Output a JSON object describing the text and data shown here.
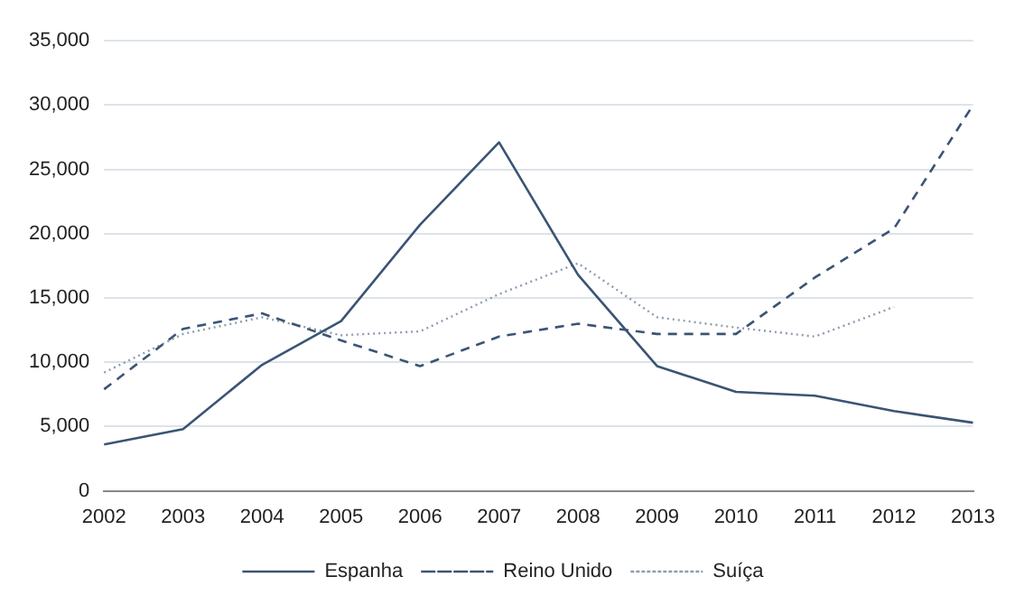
{
  "chart_data": {
    "type": "line",
    "categories": [
      "2002",
      "2003",
      "2004",
      "2005",
      "2006",
      "2007",
      "2008",
      "2009",
      "2010",
      "2011",
      "2012",
      "2013"
    ],
    "series": [
      {
        "name": "Espanha",
        "color": "#3b5475",
        "line_style": "solid",
        "values": [
          3600,
          4800,
          9800,
          13200,
          20700,
          27100,
          16800,
          9700,
          7700,
          7400,
          6200,
          5300
        ]
      },
      {
        "name": "Reino Unido",
        "color": "#3b5475",
        "line_style": "dashed",
        "values": [
          7900,
          12600,
          13800,
          11700,
          9700,
          12000,
          13000,
          12200,
          12200,
          16600,
          20400,
          30000
        ]
      },
      {
        "name": "Suíça",
        "color": "#8e9cb0",
        "line_style": "dotted",
        "values": [
          9200,
          12200,
          13500,
          12100,
          12400,
          15300,
          17700,
          13500,
          12700,
          12000,
          14300,
          null
        ]
      }
    ],
    "ylim": [
      0,
      35000
    ],
    "yticks": [
      0,
      {
        "value": 5000,
        "label": "5,000"
      },
      {
        "value": 10000,
        "label": "10,000"
      },
      {
        "value": 15000,
        "label": "15,000"
      },
      {
        "value": 20000,
        "label": "20,000"
      },
      {
        "value": 25000,
        "label": "25,000"
      },
      {
        "value": 30000,
        "label": "30,000"
      },
      {
        "value": 35000,
        "label": "35,000"
      }
    ],
    "grid": "y",
    "legend": "bottom",
    "marker": "none"
  }
}
